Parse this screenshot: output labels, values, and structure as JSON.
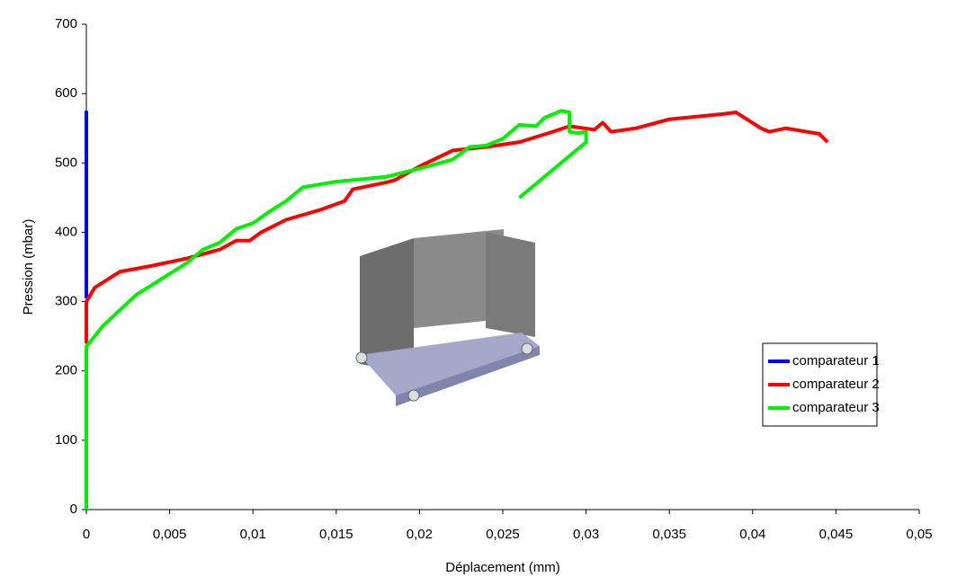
{
  "chart_data": {
    "type": "line",
    "xlabel": "Déplacement (mm)",
    "ylabel": "Pression (mbar)",
    "xlim": [
      0,
      0.05
    ],
    "ylim": [
      0,
      700
    ],
    "xticks": [
      0,
      {
        "value": 0.005,
        "label": "0,005"
      },
      {
        "value": 0.01,
        "label": "0,01"
      },
      {
        "value": 0.015,
        "label": "0,015"
      },
      {
        "value": 0.02,
        "label": "0,02"
      },
      {
        "value": 0.025,
        "label": "0,025"
      },
      {
        "value": 0.03,
        "label": "0,03"
      },
      {
        "value": 0.035,
        "label": "0,035"
      },
      {
        "value": 0.04,
        "label": "0,04"
      },
      {
        "value": 0.045,
        "label": "0,045"
      },
      {
        "value": 0.05,
        "label": "0,05"
      }
    ],
    "yticks": [
      0,
      100,
      200,
      300,
      400,
      500,
      600,
      700
    ],
    "legend_position": "right",
    "series": [
      {
        "name": "comparateur 1",
        "color": "#0000ff",
        "x": [
          0,
          0,
          0
        ],
        "values": [
          305,
          450,
          575
        ]
      },
      {
        "name": "comparateur 2",
        "color": "#ff0000",
        "x": [
          0,
          0,
          0.0005,
          0.002,
          0.004,
          0.006,
          0.008,
          0.009,
          0.0098,
          0.0105,
          0.012,
          0.014,
          0.0155,
          0.016,
          0.018,
          0.0185,
          0.02,
          0.022,
          0.024,
          0.026,
          0.028,
          0.029,
          0.0305,
          0.031,
          0.0315,
          0.033,
          0.035,
          0.038,
          0.039,
          0.0405,
          0.041,
          0.042,
          0.044,
          0.0445
        ],
        "values": [
          240,
          300,
          320,
          343,
          352,
          362,
          375,
          388,
          388,
          400,
          418,
          432,
          445,
          462,
          472,
          475,
          495,
          518,
          523,
          530,
          545,
          553,
          548,
          558,
          545,
          550,
          563,
          570,
          573,
          550,
          545,
          550,
          542,
          530
        ]
      },
      {
        "name": "comparateur 3",
        "color": "#00ee00",
        "x": [
          0,
          0,
          0.001,
          0.003,
          0.005,
          0.006,
          0.007,
          0.008,
          0.009,
          0.01,
          0.011,
          0.012,
          0.013,
          0.015,
          0.018,
          0.02,
          0.022,
          0.023,
          0.024,
          0.025,
          0.026,
          0.027,
          0.0275,
          0.0285,
          0.029,
          0.029,
          0.0295,
          0.03,
          0.03,
          0.026
        ],
        "values": [
          0,
          235,
          265,
          310,
          340,
          355,
          375,
          385,
          405,
          413,
          430,
          445,
          465,
          473,
          480,
          492,
          505,
          523,
          525,
          535,
          555,
          553,
          565,
          575,
          573,
          545,
          543,
          545,
          530,
          450
        ]
      }
    ]
  }
}
